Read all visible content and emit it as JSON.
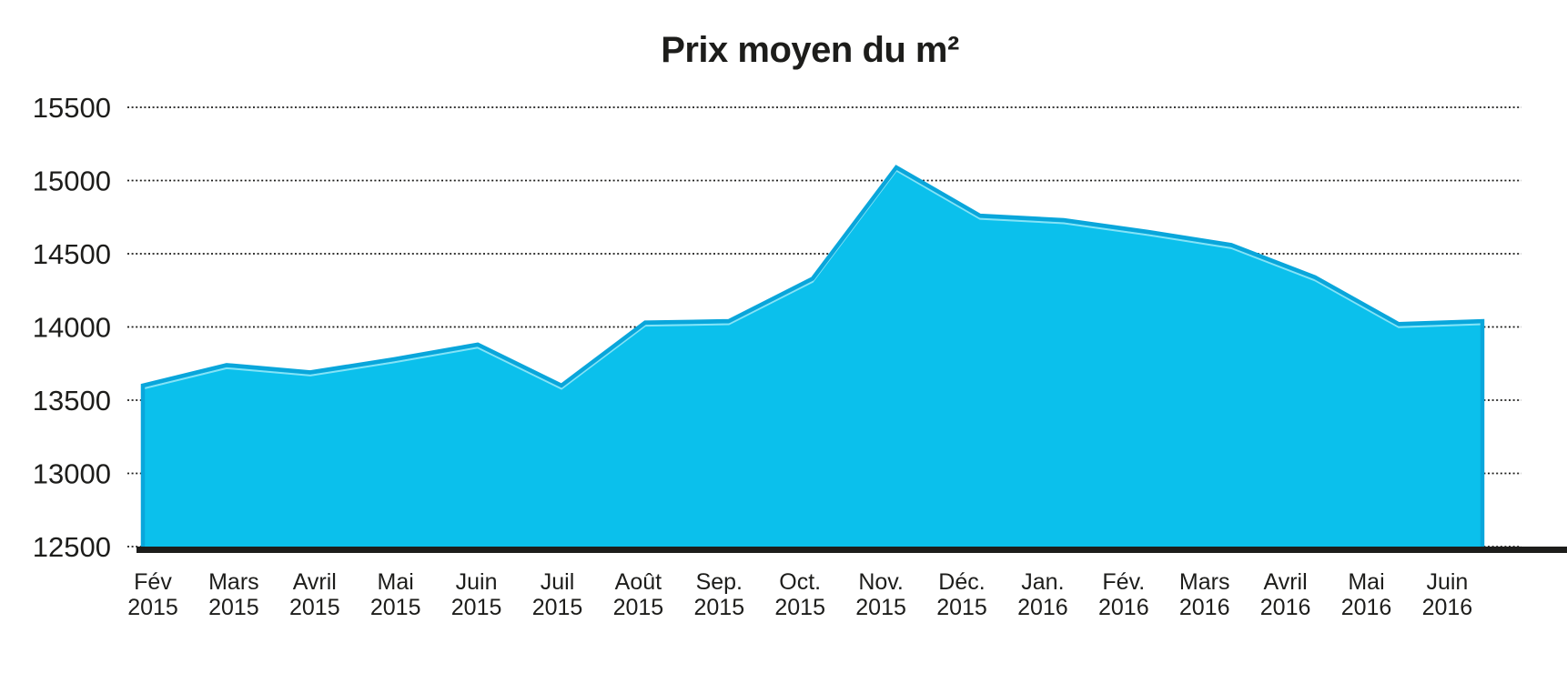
{
  "chart_data": {
    "type": "area",
    "title": "Prix moyen du m²",
    "categories": [
      "Fév 2015",
      "Mars 2015",
      "Avril 2015",
      "Mai 2015",
      "Juin 2015",
      "Juil 2015",
      "Août 2015",
      "Sep. 2015",
      "Oct. 2015",
      "Nov. 2015",
      "Déc. 2015",
      "Jan. 2016",
      "Fév. 2016",
      "Mars 2016",
      "Avril 2016",
      "Mai 2016",
      "Juin 2016"
    ],
    "values": [
      13600,
      13740,
      13690,
      13780,
      13880,
      13600,
      14030,
      14040,
      14330,
      15090,
      14760,
      14730,
      14650,
      14560,
      14340,
      14020,
      14040
    ],
    "xlabel": "",
    "ylabel": "",
    "yticks": [
      15500,
      15000,
      14500,
      14000,
      13500,
      13000,
      12500
    ],
    "ylim": [
      12500,
      15500
    ],
    "grid": "horizontal-dotted",
    "legend": "none",
    "colors": {
      "area_fill": "#0bc0ec",
      "area_stroke": "#09a6db",
      "area_highlight": "#9ae9f9",
      "text": "#1d1d1b",
      "gridline": "#1d1d1b",
      "baseline": "#1d1d1b",
      "background": "#ffffff"
    }
  }
}
